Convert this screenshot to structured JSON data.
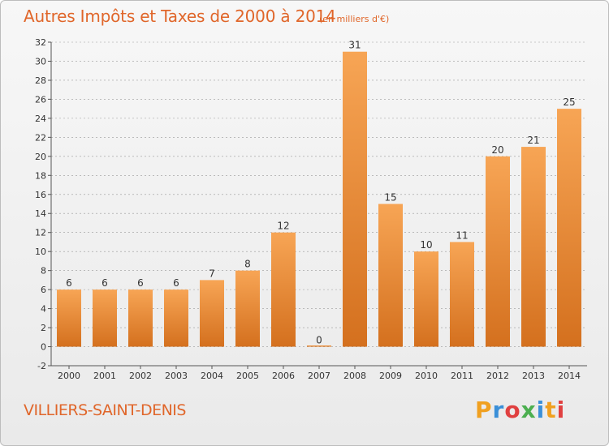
{
  "header": {
    "title": "Autres Impôts et Taxes de 2000 à 2014",
    "unit": "(en milliers d'€)"
  },
  "footer": {
    "commune": "VILLIERS-SAINT-DENIS",
    "logo_text": "Proxiti",
    "logo_letters": [
      "P",
      "r",
      "o",
      "x",
      "i",
      "t",
      "i"
    ],
    "logo_colors": [
      "#f0a020",
      "#3a8fd8",
      "#e04040",
      "#4caf50",
      "#3a8fd8",
      "#f0a020",
      "#e04040"
    ]
  },
  "colors": {
    "title": "#e0662a",
    "bar_light": "#f7a555",
    "bar_dark": "#d4701e",
    "grid": "#999999"
  },
  "chart_data": {
    "type": "bar",
    "title": "Autres Impôts et Taxes de 2000 à 2014",
    "categories": [
      "2000",
      "2001",
      "2002",
      "2003",
      "2004",
      "2005",
      "2006",
      "2007",
      "2008",
      "2009",
      "2010",
      "2011",
      "2012",
      "2013",
      "2014"
    ],
    "values": [
      6,
      6,
      6,
      6,
      7,
      8,
      12,
      0,
      31,
      15,
      10,
      11,
      20,
      21,
      25
    ],
    "value_labels": [
      "6",
      "6",
      "6",
      "6",
      "7",
      "8",
      "12",
      "0",
      "31",
      "15",
      "10",
      "11",
      "20",
      "21",
      "25"
    ],
    "y_ticks": [
      "-2",
      "0",
      "2",
      "4",
      "6",
      "8",
      "10",
      "12",
      "14",
      "16",
      "18",
      "20",
      "22",
      "24",
      "26",
      "28",
      "30",
      "32"
    ],
    "ylim": [
      -2,
      32
    ],
    "xlabel": "",
    "ylabel": "",
    "grid": "horizontal dashed",
    "legend": "none"
  }
}
